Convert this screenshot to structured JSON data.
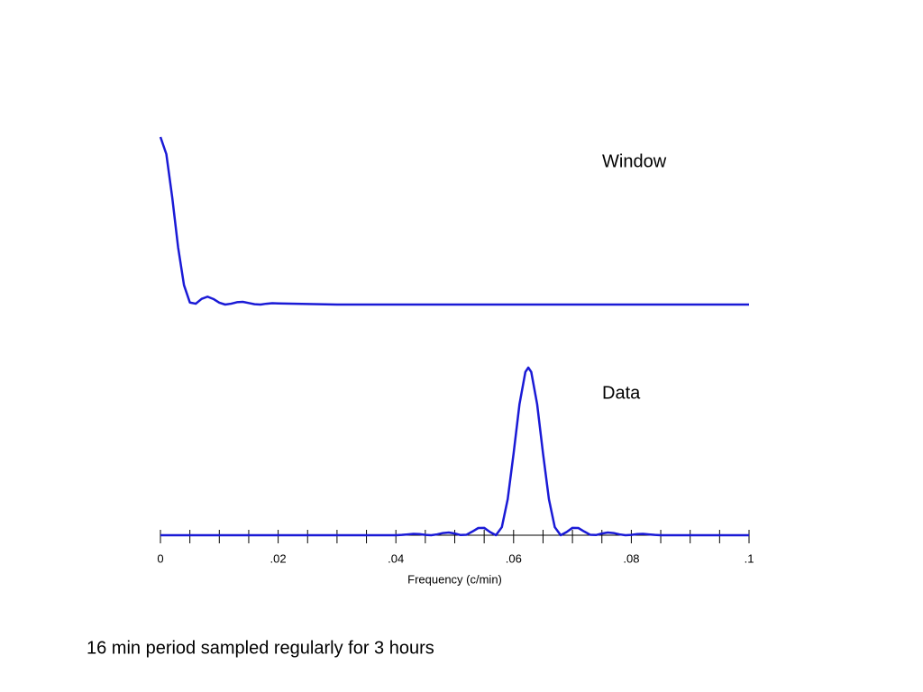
{
  "chart_data": [
    {
      "type": "line",
      "annotation": "Window",
      "x": [
        0,
        0.001,
        0.002,
        0.003,
        0.004,
        0.005,
        0.006,
        0.007,
        0.008,
        0.009,
        0.01,
        0.011,
        0.012,
        0.013,
        0.014,
        0.015,
        0.016,
        0.017,
        0.018,
        0.019,
        0.02,
        0.03,
        0.04,
        0.05,
        0.06,
        0.07,
        0.08,
        0.09,
        0.1
      ],
      "series": [
        {
          "color": "#1a1ad6",
          "values": [
            1,
            0.898,
            0.64,
            0.342,
            0.116,
            0.012,
            0.005,
            0.034,
            0.047,
            0.033,
            0.011,
            0,
            0.005,
            0.014,
            0.016,
            0.009,
            0.002,
            0,
            0.005,
            0.008,
            0.007,
            0,
            0,
            0,
            0,
            0,
            0,
            0,
            0
          ]
        }
      ],
      "xlim": [
        0,
        0.1
      ],
      "ylim": [
        0,
        1
      ]
    },
    {
      "type": "line",
      "annotation": "Data",
      "xlabel": "Frequency (c/min)",
      "x": [
        0,
        0.01,
        0.02,
        0.03,
        0.04,
        0.041,
        0.042,
        0.043,
        0.044,
        0.045,
        0.046,
        0.047,
        0.048,
        0.049,
        0.05,
        0.051,
        0.052,
        0.053,
        0.054,
        0.055,
        0.056,
        0.057,
        0.058,
        0.059,
        0.06,
        0.061,
        0.062,
        0.0625,
        0.063,
        0.064,
        0.065,
        0.066,
        0.067,
        0.068,
        0.069,
        0.07,
        0.071,
        0.072,
        0.073,
        0.074,
        0.075,
        0.076,
        0.077,
        0.078,
        0.079,
        0.08,
        0.081,
        0.082,
        0.083,
        0.084,
        0.085,
        0.09,
        0.1
      ],
      "series": [
        {
          "color": "#1a1ad6",
          "values": [
            0,
            0,
            0,
            0,
            0,
            0.002,
            0.005,
            0.008,
            0.007,
            0.002,
            0,
            0.005,
            0.013,
            0.016,
            0.01,
            0.001,
            0.003,
            0.022,
            0.043,
            0.044,
            0.019,
            0,
            0.048,
            0.215,
            0.488,
            0.782,
            0.974,
            1,
            0.974,
            0.782,
            0.488,
            0.215,
            0.048,
            0,
            0.019,
            0.044,
            0.043,
            0.022,
            0.003,
            0.001,
            0.01,
            0.016,
            0.013,
            0.005,
            0,
            0.002,
            0.007,
            0.008,
            0.005,
            0.002,
            0,
            0,
            0
          ]
        }
      ],
      "xlim": [
        0,
        0.1
      ],
      "ylim": [
        0,
        1
      ],
      "xticks": [
        0,
        {
          "value": 0.02,
          "label": ".02"
        },
        {
          "value": 0.04,
          "label": ".04"
        },
        {
          "value": 0.06,
          "label": ".06"
        },
        {
          "value": 0.08,
          "label": ".08"
        },
        {
          "value": 0.1,
          "label": ".1"
        }
      ],
      "xminorticks": [
        0.005,
        0.01,
        0.015,
        0.025,
        0.03,
        0.035,
        0.045,
        0.05,
        0.055,
        0.065,
        0.07,
        0.075,
        0.085,
        0.09,
        0.095
      ]
    }
  ],
  "caption": "16 min period sampled regularly for 3 hours"
}
